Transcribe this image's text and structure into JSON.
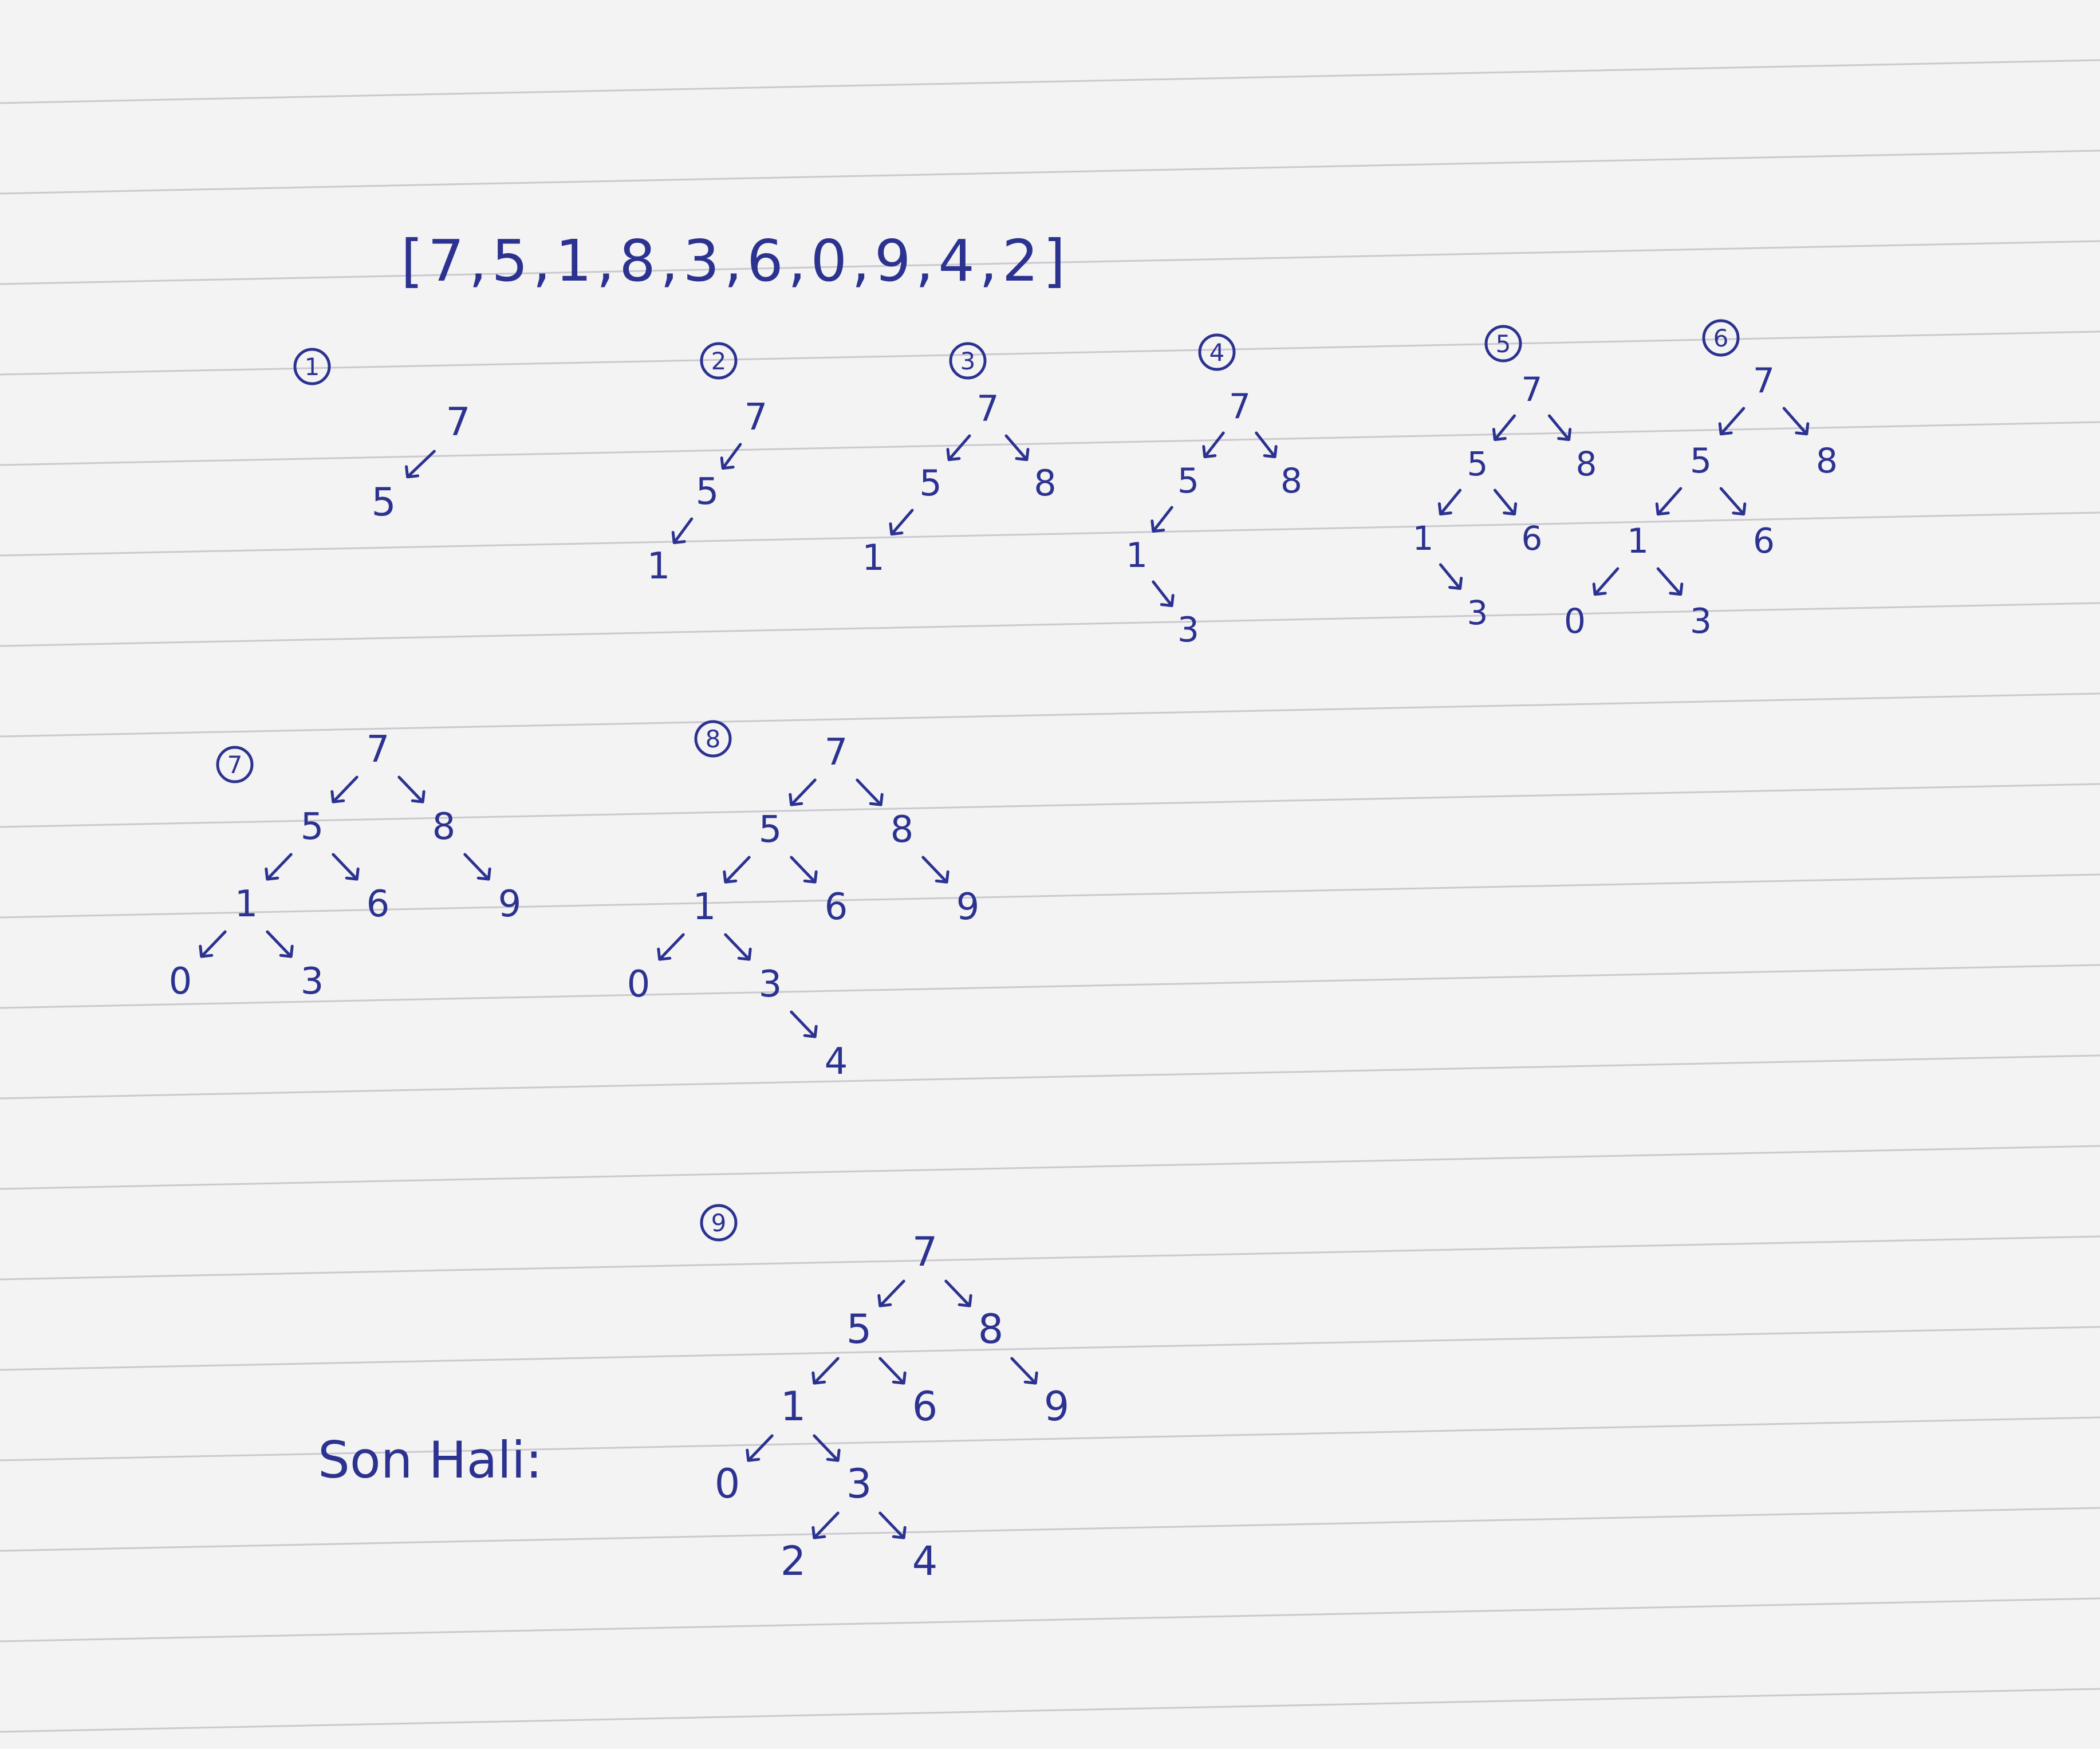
{
  "page": {
    "sequence_text": "[7,5,1,8,3,6,0,9,4,2]",
    "final_label": "Son Hali:",
    "ink_color": "#2c3290",
    "paper_color": "#f3f3f3",
    "rule_color": "#c9c9cf"
  },
  "steps": [
    {
      "label": "1",
      "tree": {
        "v": "7",
        "l": {
          "v": "5"
        }
      }
    },
    {
      "label": "2",
      "tree": {
        "v": "7",
        "l": {
          "v": "5",
          "l": {
            "v": "1"
          }
        }
      }
    },
    {
      "label": "3",
      "tree": {
        "v": "7",
        "l": {
          "v": "5",
          "l": {
            "v": "1"
          }
        },
        "r": {
          "v": "8"
        }
      }
    },
    {
      "label": "4",
      "tree": {
        "v": "7",
        "l": {
          "v": "5",
          "l": {
            "v": "1",
            "r": {
              "v": "3"
            }
          }
        },
        "r": {
          "v": "8"
        }
      }
    },
    {
      "label": "5",
      "tree": {
        "v": "7",
        "l": {
          "v": "5",
          "l": {
            "v": "1",
            "r": {
              "v": "3"
            }
          },
          "r": {
            "v": "6"
          }
        },
        "r": {
          "v": "8"
        }
      }
    },
    {
      "label": "6",
      "tree": {
        "v": "7",
        "l": {
          "v": "5",
          "l": {
            "v": "1",
            "l": {
              "v": "0"
            },
            "r": {
              "v": "3"
            }
          },
          "r": {
            "v": "6"
          }
        },
        "r": {
          "v": "8"
        }
      }
    },
    {
      "label": "7",
      "tree": {
        "v": "7",
        "l": {
          "v": "5",
          "l": {
            "v": "1",
            "l": {
              "v": "0"
            },
            "r": {
              "v": "3"
            }
          },
          "r": {
            "v": "6"
          }
        },
        "r": {
          "v": "8",
          "r": {
            "v": "9"
          }
        }
      }
    },
    {
      "label": "8",
      "tree": {
        "v": "7",
        "l": {
          "v": "5",
          "l": {
            "v": "1",
            "l": {
              "v": "0"
            },
            "r": {
              "v": "3",
              "r": {
                "v": "4"
              }
            }
          },
          "r": {
            "v": "6"
          }
        },
        "r": {
          "v": "8",
          "r": {
            "v": "9"
          }
        }
      }
    },
    {
      "label": "9",
      "tree": {
        "v": "7",
        "l": {
          "v": "5",
          "l": {
            "v": "1",
            "l": {
              "v": "0"
            },
            "r": {
              "v": "3",
              "l": {
                "v": "2"
              },
              "r": {
                "v": "4"
              }
            }
          },
          "r": {
            "v": "6"
          }
        },
        "r": {
          "v": "8",
          "r": {
            "v": "9"
          }
        }
      }
    }
  ]
}
